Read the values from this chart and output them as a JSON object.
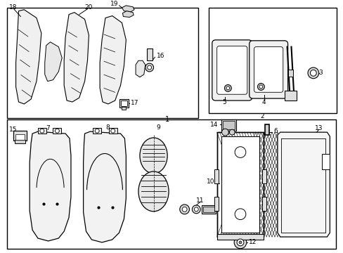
{
  "background_color": "#ffffff",
  "border_color": "#000000",
  "line_color": "#000000",
  "fig_width": 4.89,
  "fig_height": 3.6,
  "dpi": 100
}
